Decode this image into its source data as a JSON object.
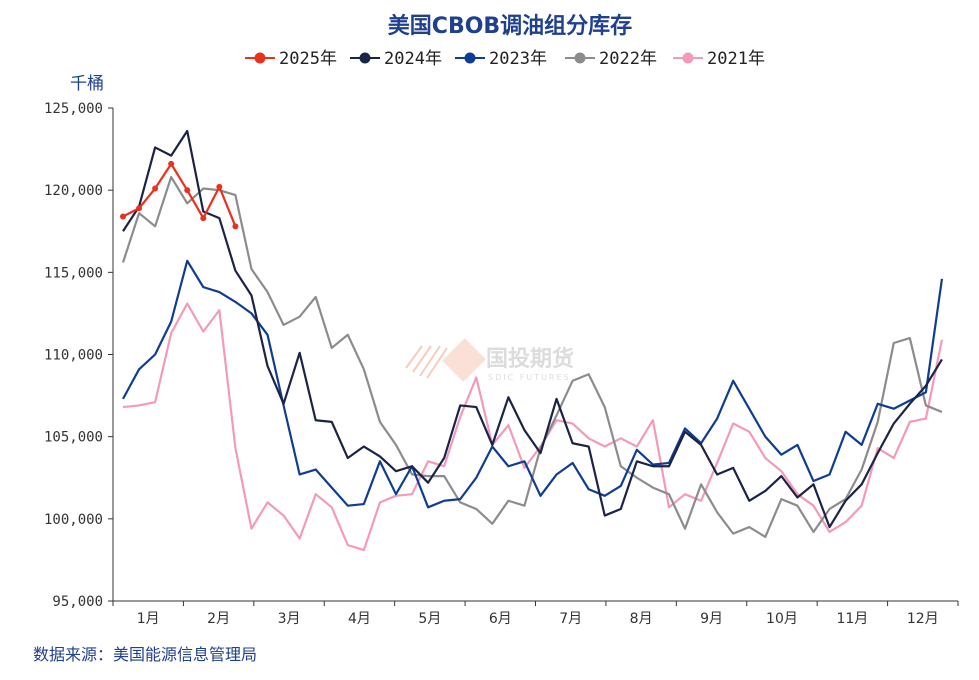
{
  "chart_data": {
    "type": "line",
    "title": "美国CBOB调油组分库存",
    "ylabel": "千桶",
    "source": "数据来源：美国能源信息管理局",
    "ylim": [
      95000,
      125000
    ],
    "yticks": [
      "125,000",
      "120,000",
      "115,000",
      "110,000",
      "105,000",
      "100,000",
      "95,000"
    ],
    "yticks_values": [
      125000,
      120000,
      115000,
      110000,
      105000,
      100000,
      95000
    ],
    "xlim": [
      1,
      53
    ],
    "xtick_labels": [
      "1月",
      "2月",
      "3月",
      "4月",
      "5月",
      "6月",
      "7月",
      "8月",
      "9月",
      "10月",
      "11月",
      "12月"
    ],
    "grid": false,
    "legend_position": "top",
    "watermark": {
      "text": "国投期货",
      "sub": "SDIC FUTURES"
    },
    "series": [
      {
        "name": "2025年",
        "color": "#e8321e",
        "marker": true,
        "x": [
          1,
          2,
          3,
          4,
          5,
          6,
          7,
          8,
          9
        ],
        "y": [
          118400,
          118900,
          120100,
          121600,
          120000,
          118300,
          120200,
          117800,
          null
        ]
      },
      {
        "name": "2024年",
        "color": "#1b2447",
        "marker": false,
        "x": [
          1,
          2,
          3,
          4,
          5,
          6,
          7,
          8,
          9,
          10,
          11,
          12,
          13,
          14,
          15,
          16,
          17,
          18,
          19,
          20,
          21,
          22,
          23,
          24,
          25,
          26,
          27,
          28,
          29,
          30,
          31,
          32,
          33,
          34,
          35,
          36,
          37,
          38,
          39,
          40,
          41,
          42,
          43,
          44,
          45,
          46,
          47,
          48,
          49,
          50,
          51,
          52
        ],
        "y": [
          117500,
          119000,
          122600,
          122100,
          123600,
          118700,
          118300,
          115100,
          113600,
          109300,
          107000,
          110100,
          106000,
          105900,
          103700,
          104400,
          103800,
          102900,
          103200,
          102200,
          103700,
          106900,
          106800,
          104500,
          107400,
          105400,
          104000,
          107300,
          104600,
          104400,
          100200,
          100600,
          103500,
          103200,
          103200,
          105300,
          104500,
          102700,
          103100,
          101100,
          101700,
          102600,
          101300,
          102100,
          99500,
          101100,
          102100,
          104000,
          105800,
          107000,
          108100,
          109700
        ]
      },
      {
        "name": "2023年",
        "color": "#0f3d91",
        "marker": false,
        "x": [
          1,
          2,
          3,
          4,
          5,
          6,
          7,
          8,
          9,
          10,
          11,
          12,
          13,
          14,
          15,
          16,
          17,
          18,
          19,
          20,
          21,
          22,
          23,
          24,
          25,
          26,
          27,
          28,
          29,
          30,
          31,
          32,
          33,
          34,
          35,
          36,
          37,
          38,
          39,
          40,
          41,
          42,
          43,
          44,
          45,
          46,
          47,
          48,
          49,
          50,
          51,
          52,
          53
        ],
        "y": [
          107300,
          109100,
          110000,
          112000,
          115700,
          114100,
          113800,
          113200,
          112500,
          111200,
          106900,
          102700,
          103000,
          101900,
          100800,
          100900,
          103500,
          101500,
          103200,
          100700,
          101100,
          101200,
          102500,
          104400,
          103200,
          103500,
          101400,
          102700,
          103400,
          101800,
          101400,
          102000,
          104200,
          103300,
          103400,
          105500,
          104600,
          106100,
          108400,
          106700,
          105000,
          103900,
          104500,
          102300,
          102700,
          105300,
          104500,
          107000,
          106700,
          107200,
          107700,
          114600,
          null
        ]
      },
      {
        "name": "2022年",
        "color": "#8c8c8c",
        "marker": false,
        "x": [
          1,
          2,
          3,
          4,
          5,
          6,
          7,
          8,
          9,
          10,
          11,
          12,
          13,
          14,
          15,
          16,
          17,
          18,
          19,
          20,
          21,
          22,
          23,
          24,
          25,
          26,
          27,
          28,
          29,
          30,
          31,
          32,
          33,
          34,
          35,
          36,
          37,
          38,
          39,
          40,
          41,
          42,
          43,
          44,
          45,
          46,
          47,
          48,
          49,
          50,
          51,
          52,
          53
        ],
        "y": [
          115600,
          118600,
          117800,
          120800,
          119200,
          120100,
          120000,
          119700,
          115200,
          113800,
          111800,
          112300,
          113500,
          110400,
          111200,
          109100,
          105900,
          104500,
          102700,
          102600,
          102600,
          101000,
          100600,
          99700,
          101100,
          100800,
          104300,
          106300,
          108400,
          108800,
          106800,
          103200,
          102500,
          101900,
          101500,
          99400,
          102100,
          100400,
          99100,
          99500,
          98900,
          101200,
          100800,
          99200,
          100600,
          101200,
          103000,
          105900,
          110700,
          111000,
          106900,
          106500,
          null
        ]
      },
      {
        "name": "2021年",
        "color": "#f49ab8",
        "marker": false,
        "x": [
          1,
          2,
          3,
          4,
          5,
          6,
          7,
          8,
          9,
          10,
          11,
          12,
          13,
          14,
          15,
          16,
          17,
          18,
          19,
          20,
          21,
          22,
          23,
          24,
          25,
          26,
          27,
          28,
          29,
          30,
          31,
          32,
          33,
          34,
          35,
          36,
          37,
          38,
          39,
          40,
          41,
          42,
          43,
          44,
          45,
          46,
          47,
          48,
          49,
          50,
          51,
          52,
          53
        ],
        "y": [
          106800,
          106900,
          107100,
          111300,
          113100,
          111400,
          112700,
          104300,
          99400,
          101000,
          100200,
          98800,
          101500,
          100700,
          98400,
          98100,
          101000,
          101400,
          101500,
          103500,
          103200,
          106200,
          108600,
          104500,
          105700,
          103100,
          104400,
          106000,
          105800,
          104900,
          104400,
          104900,
          104400,
          106000,
          100700,
          101500,
          101100,
          103400,
          105800,
          105300,
          103700,
          102900,
          101500,
          100800,
          99200,
          99800,
          100800,
          104300,
          103700,
          105900,
          106100,
          110900,
          null
        ]
      }
    ]
  }
}
